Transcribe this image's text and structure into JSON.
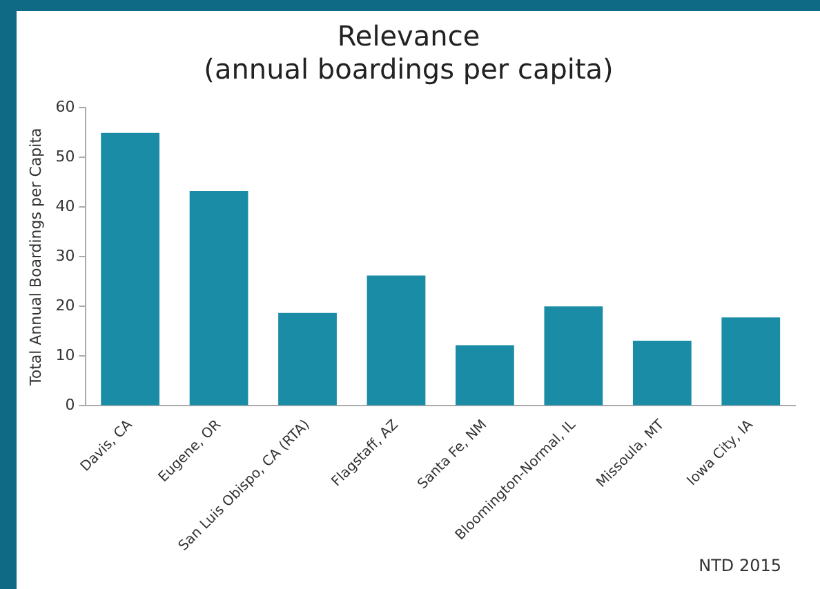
{
  "chart_data": {
    "type": "bar",
    "title": [
      "Relevance",
      "(annual boardings per capita)"
    ],
    "ylabel": "Total Annual Boardings per Capita",
    "categories": [
      "Davis, CA",
      "Eugene, OR",
      "San Luis Obispo, CA (RTA)",
      "Flagstaff, AZ",
      "Santa Fe, NM",
      "Bloomington-Normal, IL",
      "Missoula, MT",
      "Iowa City, IA"
    ],
    "values": [
      54.9,
      43.2,
      18.7,
      26.2,
      12.2,
      20.0,
      13.1,
      17.8
    ],
    "color": "#1a8ca5",
    "ylim": [
      0,
      60
    ],
    "yticks": [
      0,
      10,
      20,
      30,
      40,
      50,
      60
    ],
    "grid": false,
    "legend": false,
    "annotations": [
      "NTD 2015"
    ]
  }
}
